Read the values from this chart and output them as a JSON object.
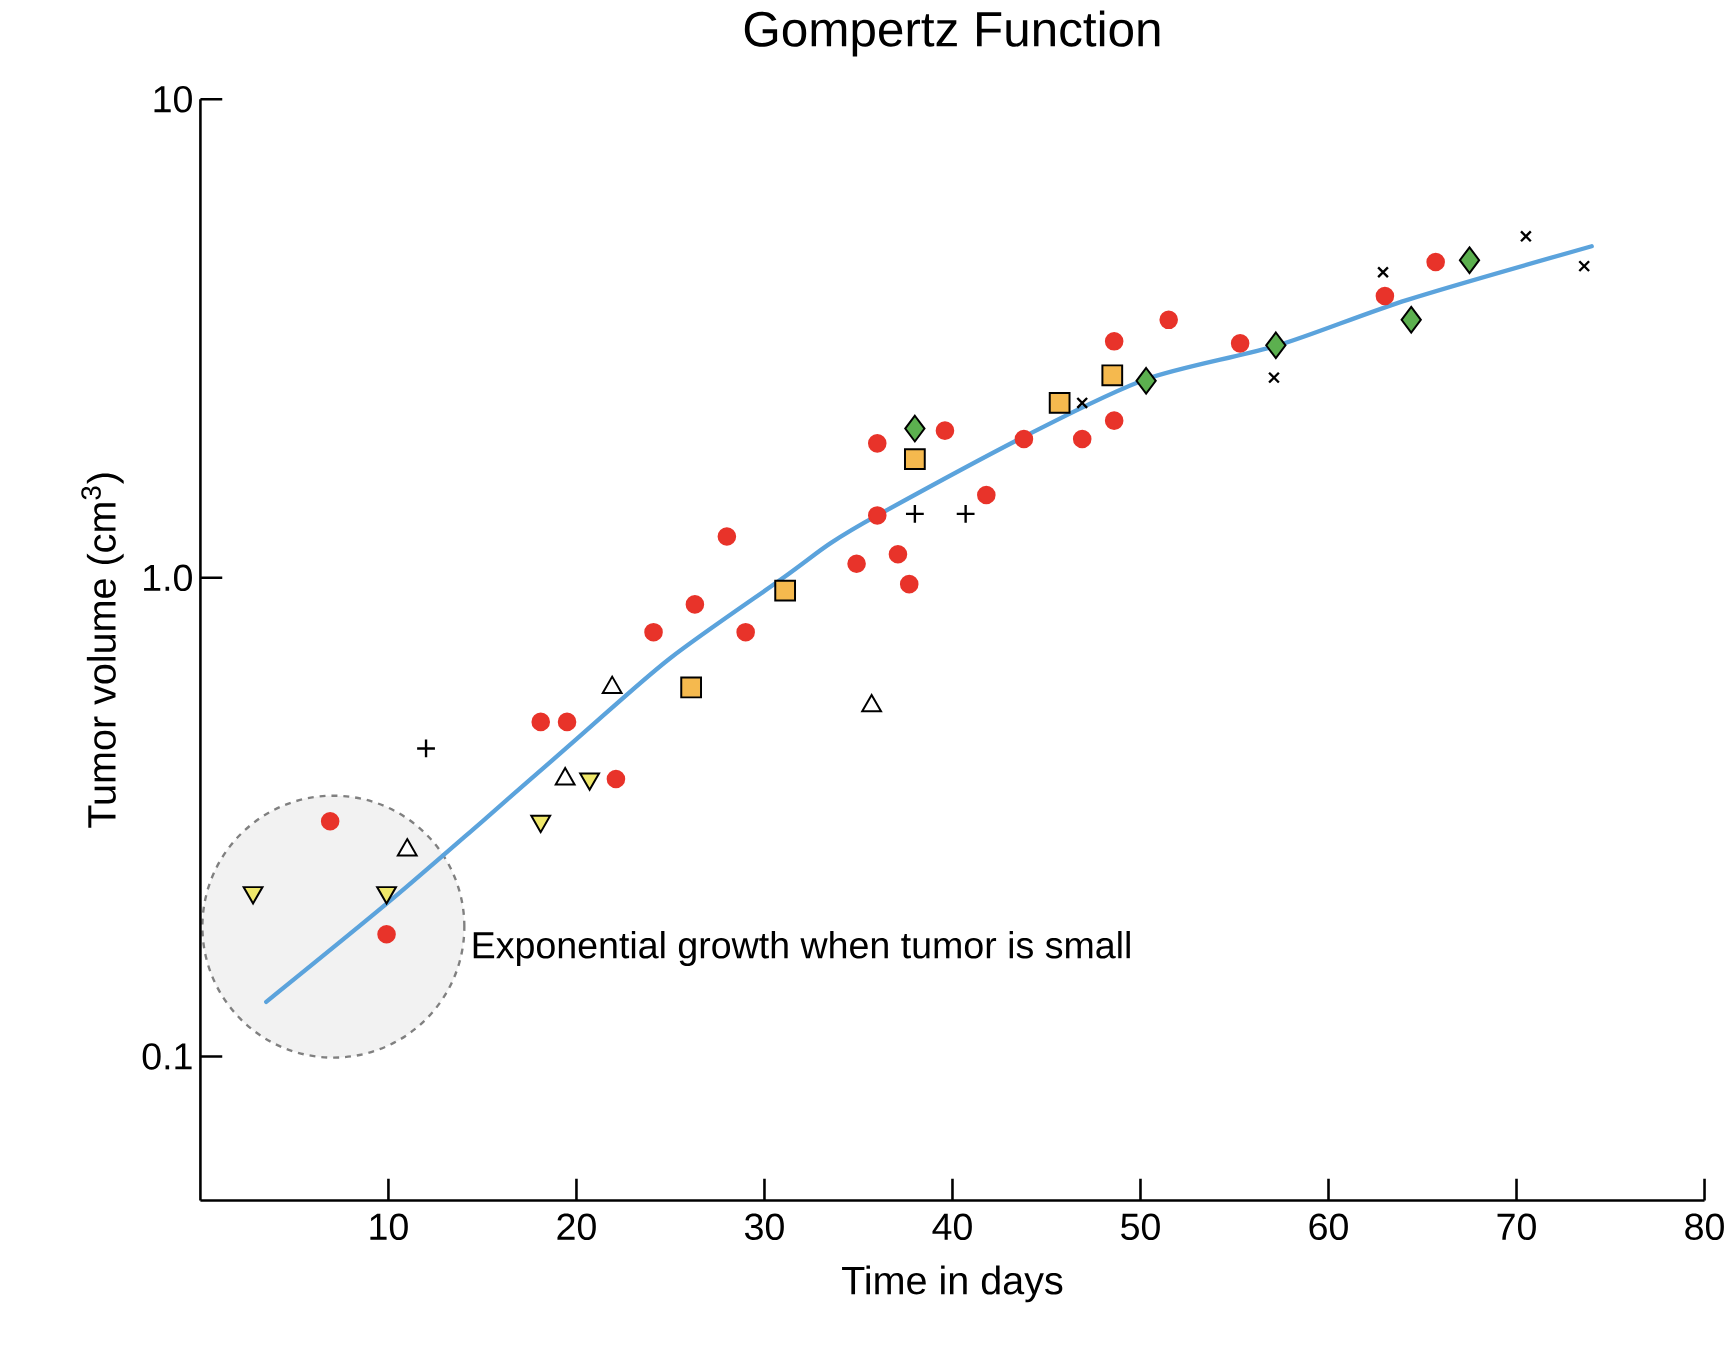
{
  "chart_data": {
    "type": "scatter",
    "title": "Gompertz Function",
    "xlabel": "Time in days",
    "ylabel": "Tumor volume (cm$^{3}$)",
    "xlim": [
      0,
      80
    ],
    "xticks": [
      10,
      20,
      30,
      40,
      50,
      60,
      70,
      80
    ],
    "ylim": [
      0.05,
      10
    ],
    "yticks": [
      0.1,
      {
        "value": 1,
        "label": "1.0"
      },
      10
    ],
    "log": "y",
    "annotations": [
      "Exponential growth when tumor is small"
    ],
    "series": [
      {
        "type": "scatter",
        "marker": "circle",
        "color": "#e8332a",
        "x": [
          6.9,
          9.9,
          18.1,
          19.5,
          22.1,
          24.1,
          26.3,
          28.0,
          29.0,
          34.9,
          36.0,
          36.0,
          37.1,
          37.7,
          39.6,
          41.8,
          43.8,
          46.9,
          48.6,
          48.6,
          51.5,
          55.3,
          63.0,
          65.7
        ],
        "values": [
          0.31,
          0.18,
          0.5,
          0.5,
          0.38,
          0.77,
          0.88,
          1.22,
          0.77,
          1.07,
          1.35,
          1.91,
          1.12,
          0.97,
          2.03,
          1.49,
          1.95,
          1.95,
          2.13,
          3.12,
          3.46,
          3.09,
          3.88,
          4.57
        ]
      },
      {
        "type": "scatter",
        "marker": "triangle",
        "color": "#000000",
        "x": [
          11.0,
          19.4,
          21.9,
          35.7
        ],
        "values": [
          0.27,
          0.38,
          0.59,
          0.54
        ]
      },
      {
        "type": "scatter",
        "marker": "triangle-down",
        "color": "#f0e86a",
        "x": [
          2.8,
          9.9,
          18.1,
          20.7
        ],
        "values": [
          0.22,
          0.22,
          0.31,
          0.38
        ]
      },
      {
        "type": "scatter",
        "marker": "plus",
        "color": "#000000",
        "x": [
          12.0,
          38.0,
          40.7
        ],
        "values": [
          0.44,
          1.36,
          1.36
        ]
      },
      {
        "type": "scatter",
        "marker": "square",
        "color": "#f5b94e",
        "x": [
          26.1,
          31.1,
          38.0,
          45.7,
          48.5
        ],
        "values": [
          0.59,
          0.94,
          1.77,
          2.32,
          2.65
        ]
      },
      {
        "type": "scatter",
        "marker": "diamond",
        "color": "#5cb04f",
        "x": [
          38.0,
          50.3,
          57.2,
          64.4,
          67.5
        ],
        "values": [
          2.05,
          2.58,
          3.06,
          3.46,
          4.61
        ]
      },
      {
        "type": "scatter",
        "marker": "cross",
        "color": "#000000",
        "x": [
          46.9,
          57.1,
          62.9,
          70.5,
          73.6
        ],
        "values": [
          2.32,
          2.62,
          4.35,
          5.17,
          4.48
        ]
      },
      {
        "type": "line",
        "marker": "none",
        "color": "#5ba3dc",
        "x": [
          3.5,
          10,
          15,
          20,
          25,
          31,
          33.5,
          36,
          44,
          50.3,
          57.3,
          64.2,
          74
        ],
        "values": [
          0.13,
          0.21,
          0.31,
          0.46,
          0.68,
          1.0,
          1.18,
          1.35,
          1.99,
          2.6,
          3.06,
          3.81,
          4.93
        ]
      }
    ]
  }
}
